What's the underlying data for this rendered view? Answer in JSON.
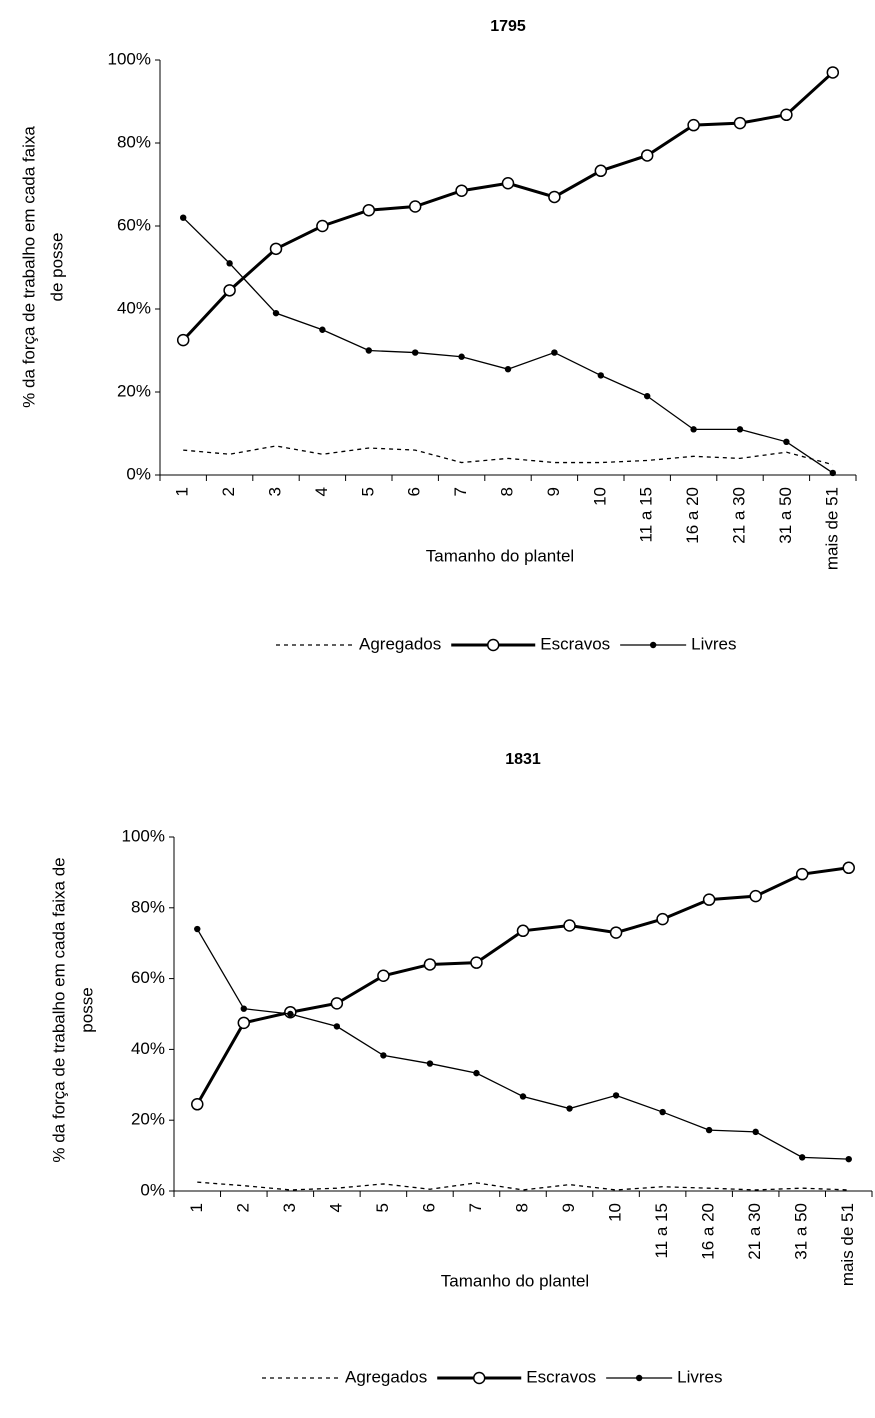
{
  "chart_data": [
    {
      "type": "line",
      "title": "1795",
      "xlabel": "Tamanho do plantel",
      "ylabel": [
        "% da força de trabalho em cada faixa",
        "de posse"
      ],
      "categories": [
        "1",
        "2",
        "3",
        "4",
        "5",
        "6",
        "7",
        "8",
        "9",
        "10",
        "11 a 15",
        "16 a 20",
        "21 a 30",
        "31 a 50",
        "mais de 51"
      ],
      "ylim": [
        0,
        100
      ],
      "yticks": [
        {
          "value": 0,
          "label": "0%"
        },
        {
          "value": 20,
          "label": "20%"
        },
        {
          "value": 40,
          "label": "40%"
        },
        {
          "value": 60,
          "label": "60%"
        },
        {
          "value": 80,
          "label": "80%"
        },
        {
          "value": 100,
          "label": "100%"
        }
      ],
      "series": [
        {
          "name": "Agregados",
          "color": "#000000",
          "style": "dashed",
          "width": 1.3,
          "marker": "none",
          "values": [
            6,
            5,
            7,
            5,
            6.5,
            6,
            3,
            4,
            3,
            3,
            3.5,
            4.5,
            4,
            5.5,
            2.5
          ]
        },
        {
          "name": "Escravos",
          "color": "#000000",
          "style": "solid",
          "width": 3,
          "marker": "circle-open",
          "values": [
            32.5,
            44.5,
            54.5,
            60,
            63.8,
            64.7,
            68.5,
            70.3,
            67,
            73.3,
            77,
            84.3,
            84.8,
            86.8,
            97
          ]
        },
        {
          "name": "Livres",
          "color": "#000000",
          "style": "solid",
          "width": 1.3,
          "marker": "dot",
          "values": [
            62,
            51,
            39,
            35,
            30,
            29.5,
            28.5,
            25.5,
            29.5,
            24,
            19,
            11,
            11,
            8,
            0.5
          ]
        }
      ]
    },
    {
      "type": "line",
      "title": "1831",
      "xlabel": "Tamanho do plantel",
      "ylabel": [
        "% da força de trabalho em cada faixa de",
        "posse"
      ],
      "categories": [
        "1",
        "2",
        "3",
        "4",
        "5",
        "6",
        "7",
        "8",
        "9",
        "10",
        "11 a 15",
        "16 a 20",
        "21 a 30",
        "31 a 50",
        "mais de 51"
      ],
      "ylim": [
        0,
        100
      ],
      "yticks": [
        {
          "value": 0,
          "label": "0%"
        },
        {
          "value": 20,
          "label": "20%"
        },
        {
          "value": 40,
          "label": "40%"
        },
        {
          "value": 60,
          "label": "60%"
        },
        {
          "value": 80,
          "label": "80%"
        },
        {
          "value": 100,
          "label": "100%"
        }
      ],
      "series": [
        {
          "name": "Agregados",
          "color": "#000000",
          "style": "dashed",
          "width": 1.3,
          "marker": "none",
          "values": [
            2.5,
            1.5,
            0.3,
            0.8,
            2,
            0.5,
            2.3,
            0.3,
            1.8,
            0.3,
            1.2,
            0.8,
            0.3,
            0.8,
            0.3
          ]
        },
        {
          "name": "Escravos",
          "color": "#000000",
          "style": "solid",
          "width": 3,
          "marker": "circle-open",
          "values": [
            24.5,
            47.5,
            50.5,
            53,
            60.8,
            64,
            64.5,
            73.5,
            75,
            73,
            76.8,
            82.3,
            83.3,
            89.5,
            91.3
          ]
        },
        {
          "name": "Livres",
          "color": "#000000",
          "style": "solid",
          "width": 1.3,
          "marker": "dot",
          "values": [
            74,
            51.5,
            50,
            46.5,
            38.3,
            36,
            33.3,
            26.7,
            23.3,
            27,
            22.3,
            17.2,
            16.7,
            9.5,
            9
          ]
        }
      ]
    }
  ]
}
